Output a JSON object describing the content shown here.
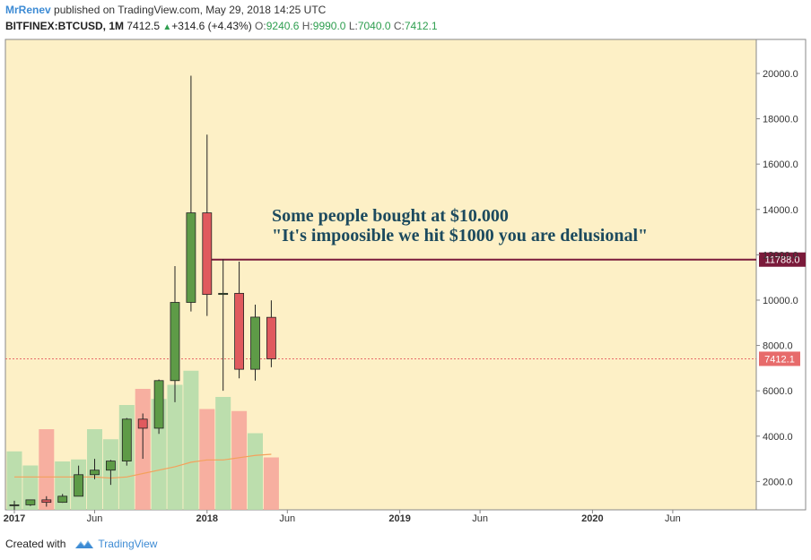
{
  "header": {
    "author": "MrRenev",
    "published": "published on TradingView.com, May 29, 2018 14:25 UTC"
  },
  "symbol_bar": {
    "symbol": "BITFINEX:BTCUSD, 1M",
    "price": "7412.5",
    "change": "+314.6 (+4.43%)",
    "change_arrow": "▲",
    "open_label": "O:",
    "open": "9240.6",
    "high_label": "H:",
    "high": "9990.0",
    "low_label": "L:",
    "low": "7040.0",
    "close_label": "C:",
    "close": "7412.1"
  },
  "annotation": {
    "line1": "Some people bought at $10.000",
    "line2": "\"It's impoosible we hit $1000 you are delusional\""
  },
  "colors": {
    "background": "#fdf0c6",
    "up": "#5e9b47",
    "down": "#e05a5e",
    "vol_up": "#b5dcaa",
    "vol_down": "#f6a79b",
    "ma": "#f4a15c",
    "level": "#7a1a3a",
    "price_label": "#e76b6b",
    "annotation_text": "#1c4a5e"
  },
  "footer": {
    "created_with": "Created with",
    "brand": "TradingView"
  },
  "chart_data": {
    "type": "candlestick",
    "x_tick_labels": [
      "2017",
      "Jun",
      "2018",
      "Jun",
      "2019",
      "Jun",
      "2020",
      "Jun"
    ],
    "y_ticks": [
      2000,
      4000,
      6000,
      8000,
      10000,
      12000,
      14000,
      16000,
      18000,
      20000
    ],
    "y_tick_labels": [
      "2000.0",
      "4000.0",
      "6000.0",
      "8000.0",
      "10000.0",
      "12000.0",
      "14000.0",
      "16000.0",
      "18000.0",
      "20000.0"
    ],
    "ylim": [
      750,
      21500
    ],
    "candles": [
      {
        "month": "2017-01",
        "open": 965,
        "high": 1150,
        "low": 750,
        "close": 970
      },
      {
        "month": "2017-02",
        "open": 970,
        "high": 1200,
        "low": 920,
        "close": 1190
      },
      {
        "month": "2017-03",
        "open": 1190,
        "high": 1350,
        "low": 890,
        "close": 1080
      },
      {
        "month": "2017-04",
        "open": 1080,
        "high": 1450,
        "low": 1060,
        "close": 1350
      },
      {
        "month": "2017-05",
        "open": 1350,
        "high": 2700,
        "low": 1350,
        "close": 2300
      },
      {
        "month": "2017-06",
        "open": 2300,
        "high": 3000,
        "low": 2100,
        "close": 2500
      },
      {
        "month": "2017-07",
        "open": 2500,
        "high": 2950,
        "low": 1850,
        "close": 2900
      },
      {
        "month": "2017-08",
        "open": 2900,
        "high": 4800,
        "low": 2700,
        "close": 4750
      },
      {
        "month": "2017-09",
        "open": 4750,
        "high": 5000,
        "low": 3000,
        "close": 4350
      },
      {
        "month": "2017-10",
        "open": 4350,
        "high": 6500,
        "low": 4100,
        "close": 6450
      },
      {
        "month": "2017-11",
        "open": 6450,
        "high": 11500,
        "low": 5500,
        "close": 9900
      },
      {
        "month": "2017-12",
        "open": 9900,
        "high": 19900,
        "low": 9500,
        "close": 13850
      },
      {
        "month": "2018-01",
        "open": 13850,
        "high": 17300,
        "low": 9300,
        "close": 10250
      },
      {
        "month": "2018-02",
        "open": 10250,
        "high": 11800,
        "low": 6000,
        "close": 10300
      },
      {
        "month": "2018-03",
        "open": 10300,
        "high": 11700,
        "low": 6550,
        "close": 6950
      },
      {
        "month": "2018-04",
        "open": 6950,
        "high": 9800,
        "low": 6450,
        "close": 9250
      },
      {
        "month": "2018-05",
        "open": 9240.6,
        "high": 9990,
        "low": 7040,
        "close": 7412.1
      }
    ],
    "volume_relative": [
      0.29,
      0.22,
      0.4,
      0.24,
      0.25,
      0.4,
      0.35,
      0.52,
      0.6,
      0.55,
      0.62,
      0.69,
      0.5,
      0.56,
      0.49,
      0.38,
      0.26
    ],
    "moving_average": [
      2200,
      2200,
      2200,
      2200,
      2200,
      2200,
      2150,
      2200,
      2350,
      2500,
      2650,
      2850,
      2950,
      2950,
      3050,
      3150,
      3200
    ],
    "levels": [
      {
        "value": 11788,
        "label": "11788.0",
        "from_month": "2018-01"
      },
      {
        "value": 7412.1,
        "label": "7412.1",
        "dotted": true
      }
    ]
  }
}
